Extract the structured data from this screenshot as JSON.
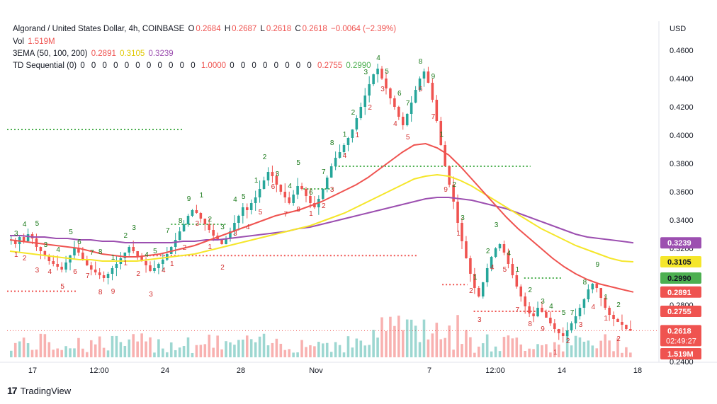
{
  "header": {
    "title": "Algorand / United States Dollar, 4h, COINBASE",
    "o_label": "O",
    "o": "0.2684",
    "h_label": "H",
    "h": "0.2687",
    "l_label": "L",
    "l": "0.2618",
    "c_label": "C",
    "c": "0.2618",
    "change": "−0.0064 (−2.39%)",
    "vol_label": "Vol",
    "vol": "1.519M",
    "ema_label": "3EMA (50, 100, 200)",
    "ema50": "0.2891",
    "ema100": "0.3105",
    "ema200": "0.3239",
    "td_label": "TD Sequential (0)",
    "td_zeros_a": "0 0 0 0 0 0 0 0 0 0 0",
    "td_val1": "1.0000",
    "td_zeros_b": "0 0 0 0 0 0 0 0",
    "td_val2": "0.2755",
    "td_val3": "0.2990"
  },
  "colors": {
    "up": "#26a69a",
    "down": "#ef5350",
    "ema50": "#ef5350",
    "ema100": "#f5e62a",
    "ema200": "#9c4fb0",
    "td_up": "#1b7a1b",
    "td_down": "#d32f2f"
  },
  "chart_data": {
    "type": "candlestick",
    "currency_label": "USD",
    "ylim": [
      0.235,
      0.465
    ],
    "y_ticks": [
      0.24,
      0.26,
      0.28,
      0.3,
      0.32,
      0.34,
      0.36,
      0.38,
      0.4,
      0.42,
      0.44,
      0.46
    ],
    "y_tick_labels": [
      "0.2400",
      "0.2600",
      "0.2800",
      "0.3000",
      "0.3200",
      "0.3400",
      "0.3600",
      "0.3800",
      "0.4000",
      "0.4200",
      "0.4400",
      "0.4600"
    ],
    "x_ticks": [
      "17",
      "12:00",
      "24",
      "28",
      "Nov",
      "7",
      "12:00",
      "14",
      "18"
    ],
    "close_series": [
      0.326,
      0.323,
      0.328,
      0.325,
      0.33,
      0.327,
      0.321,
      0.318,
      0.315,
      0.311,
      0.309,
      0.307,
      0.305,
      0.31,
      0.315,
      0.32,
      0.317,
      0.312,
      0.308,
      0.305,
      0.303,
      0.301,
      0.299,
      0.302,
      0.306,
      0.309,
      0.313,
      0.317,
      0.321,
      0.318,
      0.314,
      0.311,
      0.308,
      0.304,
      0.306,
      0.309,
      0.312,
      0.316,
      0.321,
      0.326,
      0.332,
      0.337,
      0.343,
      0.347,
      0.345,
      0.341,
      0.337,
      0.333,
      0.329,
      0.326,
      0.323,
      0.327,
      0.332,
      0.338,
      0.343,
      0.349,
      0.347,
      0.352,
      0.356,
      0.362,
      0.368,
      0.374,
      0.371,
      0.365,
      0.36,
      0.356,
      0.352,
      0.358,
      0.364,
      0.362,
      0.357,
      0.352,
      0.349,
      0.355,
      0.362,
      0.37,
      0.378,
      0.384,
      0.388,
      0.393,
      0.398,
      0.404,
      0.412,
      0.42,
      0.428,
      0.436,
      0.443,
      0.447,
      0.44,
      0.433,
      0.426,
      0.42,
      0.413,
      0.407,
      0.415,
      0.423,
      0.432,
      0.44,
      0.445,
      0.437,
      0.425,
      0.41,
      0.393,
      0.378,
      0.365,
      0.353,
      0.338,
      0.325,
      0.313,
      0.302,
      0.292,
      0.286,
      0.296,
      0.306,
      0.314,
      0.32,
      0.323,
      0.317,
      0.309,
      0.301,
      0.293,
      0.286,
      0.279,
      0.274,
      0.272,
      0.278,
      0.275,
      0.271,
      0.267,
      0.263,
      0.26,
      0.258,
      0.262,
      0.267,
      0.272,
      0.278,
      0.284,
      0.291,
      0.295,
      0.292,
      0.285,
      0.278,
      0.273,
      0.27,
      0.268,
      0.266,
      0.263,
      0.2618
    ],
    "ema50": [
      0.326,
      0.325,
      0.324,
      0.323,
      0.322,
      0.321,
      0.32,
      0.318,
      0.316,
      0.315,
      0.314,
      0.314,
      0.315,
      0.316,
      0.318,
      0.32,
      0.322,
      0.325,
      0.328,
      0.331,
      0.334,
      0.337,
      0.34,
      0.343,
      0.345,
      0.347,
      0.35,
      0.353,
      0.357,
      0.361,
      0.365,
      0.37,
      0.376,
      0.382,
      0.388,
      0.393,
      0.394,
      0.391,
      0.386,
      0.378,
      0.369,
      0.36,
      0.351,
      0.342,
      0.334,
      0.327,
      0.32,
      0.313,
      0.307,
      0.302,
      0.298,
      0.295,
      0.293,
      0.291,
      0.2891
    ],
    "ema100": [
      0.318,
      0.317,
      0.316,
      0.315,
      0.314,
      0.313,
      0.312,
      0.312,
      0.311,
      0.311,
      0.311,
      0.311,
      0.312,
      0.313,
      0.314,
      0.315,
      0.316,
      0.318,
      0.32,
      0.322,
      0.324,
      0.326,
      0.328,
      0.33,
      0.332,
      0.334,
      0.336,
      0.339,
      0.342,
      0.345,
      0.349,
      0.353,
      0.357,
      0.361,
      0.365,
      0.369,
      0.371,
      0.372,
      0.371,
      0.368,
      0.364,
      0.359,
      0.354,
      0.349,
      0.344,
      0.339,
      0.334,
      0.33,
      0.326,
      0.322,
      0.319,
      0.316,
      0.313,
      0.311,
      0.3105
    ],
    "ema200": [
      0.329,
      0.329,
      0.328,
      0.328,
      0.327,
      0.327,
      0.326,
      0.326,
      0.325,
      0.325,
      0.324,
      0.324,
      0.324,
      0.324,
      0.324,
      0.325,
      0.325,
      0.326,
      0.326,
      0.327,
      0.328,
      0.329,
      0.33,
      0.331,
      0.332,
      0.334,
      0.335,
      0.337,
      0.339,
      0.341,
      0.343,
      0.345,
      0.347,
      0.349,
      0.351,
      0.353,
      0.355,
      0.356,
      0.356,
      0.355,
      0.354,
      0.352,
      0.35,
      0.348,
      0.345,
      0.342,
      0.339,
      0.336,
      0.333,
      0.33,
      0.328,
      0.327,
      0.326,
      0.325,
      0.3239
    ],
    "support_lines": [
      {
        "value": 0.404,
        "from": 0.0,
        "to": 0.28,
        "color": "#4caf50"
      },
      {
        "value": 0.378,
        "from": 0.52,
        "to": 0.83,
        "color": "#4caf50"
      },
      {
        "value": 0.362,
        "from": 0.47,
        "to": 0.52,
        "color": "#4caf50"
      },
      {
        "value": 0.337,
        "from": 0.26,
        "to": 0.35,
        "color": "#4caf50"
      },
      {
        "value": 0.3149,
        "from": 0.22,
        "to": 0.65,
        "color": "#ef5350"
      },
      {
        "value": 0.299,
        "from": 0.82,
        "to": 0.88,
        "color": "#4caf50"
      },
      {
        "value": 0.2897,
        "from": 0.0,
        "to": 0.11,
        "color": "#ef5350"
      },
      {
        "value": 0.2755,
        "from": 0.74,
        "to": 0.88,
        "color": "#ef5350"
      },
      {
        "value": 0.2944,
        "from": 0.69,
        "to": 0.73,
        "color": "#ef5350"
      }
    ],
    "last_price_line": 0.2618,
    "price_tags": [
      {
        "label": "0.3239",
        "value": 0.3239,
        "bg": "#9c4fb0",
        "fg": "#ffffff"
      },
      {
        "label": "0.3105",
        "value": 0.3105,
        "bg": "#f5e62a",
        "fg": "#131722"
      },
      {
        "label": "0.2990",
        "value": 0.299,
        "bg": "#4caf50",
        "fg": "#131722"
      },
      {
        "label": "0.2891",
        "value": 0.2891,
        "bg": "#ef5350",
        "fg": "#ffffff"
      },
      {
        "label": "0.2755",
        "value": 0.2755,
        "bg": "#ef5350",
        "fg": "#ffffff"
      },
      {
        "label": "0.2618",
        "value": 0.2618,
        "bg": "#ef5350",
        "fg": "#ffffff"
      }
    ],
    "countdown": "02:49:27",
    "volume_label": "1.519M",
    "td_markers_up": [
      "3",
      "4",
      "5",
      "3",
      "4",
      "5",
      "6",
      "7",
      "8",
      "1",
      "2",
      "3",
      "4",
      "5",
      "7",
      "8",
      "9",
      "1",
      "2",
      "3",
      "4",
      "5",
      "1",
      "2",
      "3",
      "4",
      "5",
      "6",
      "7",
      "8",
      "1",
      "2",
      "3",
      "4",
      "5",
      "6",
      "7",
      "8",
      "9",
      "1",
      "2",
      "3",
      "1",
      "2",
      "3",
      "4",
      "1",
      "2",
      "3",
      "4",
      "5",
      "7",
      "8",
      "9",
      "1",
      "2"
    ],
    "td_markers_down": [
      "1",
      "2",
      "3",
      "4",
      "5",
      "6",
      "7",
      "8",
      "9",
      "1",
      "2",
      "3",
      "4",
      "1",
      "2",
      "3",
      "1",
      "2",
      "3",
      "4",
      "5",
      "6",
      "7",
      "8",
      "1",
      "2",
      "3",
      "4",
      "1",
      "2",
      "3",
      "4",
      "5",
      "6",
      "7",
      "9",
      "1",
      "2",
      "3",
      "4",
      "5",
      "7",
      "8",
      "9",
      "1",
      "2",
      "3",
      "4",
      "1",
      "2"
    ]
  }
}
